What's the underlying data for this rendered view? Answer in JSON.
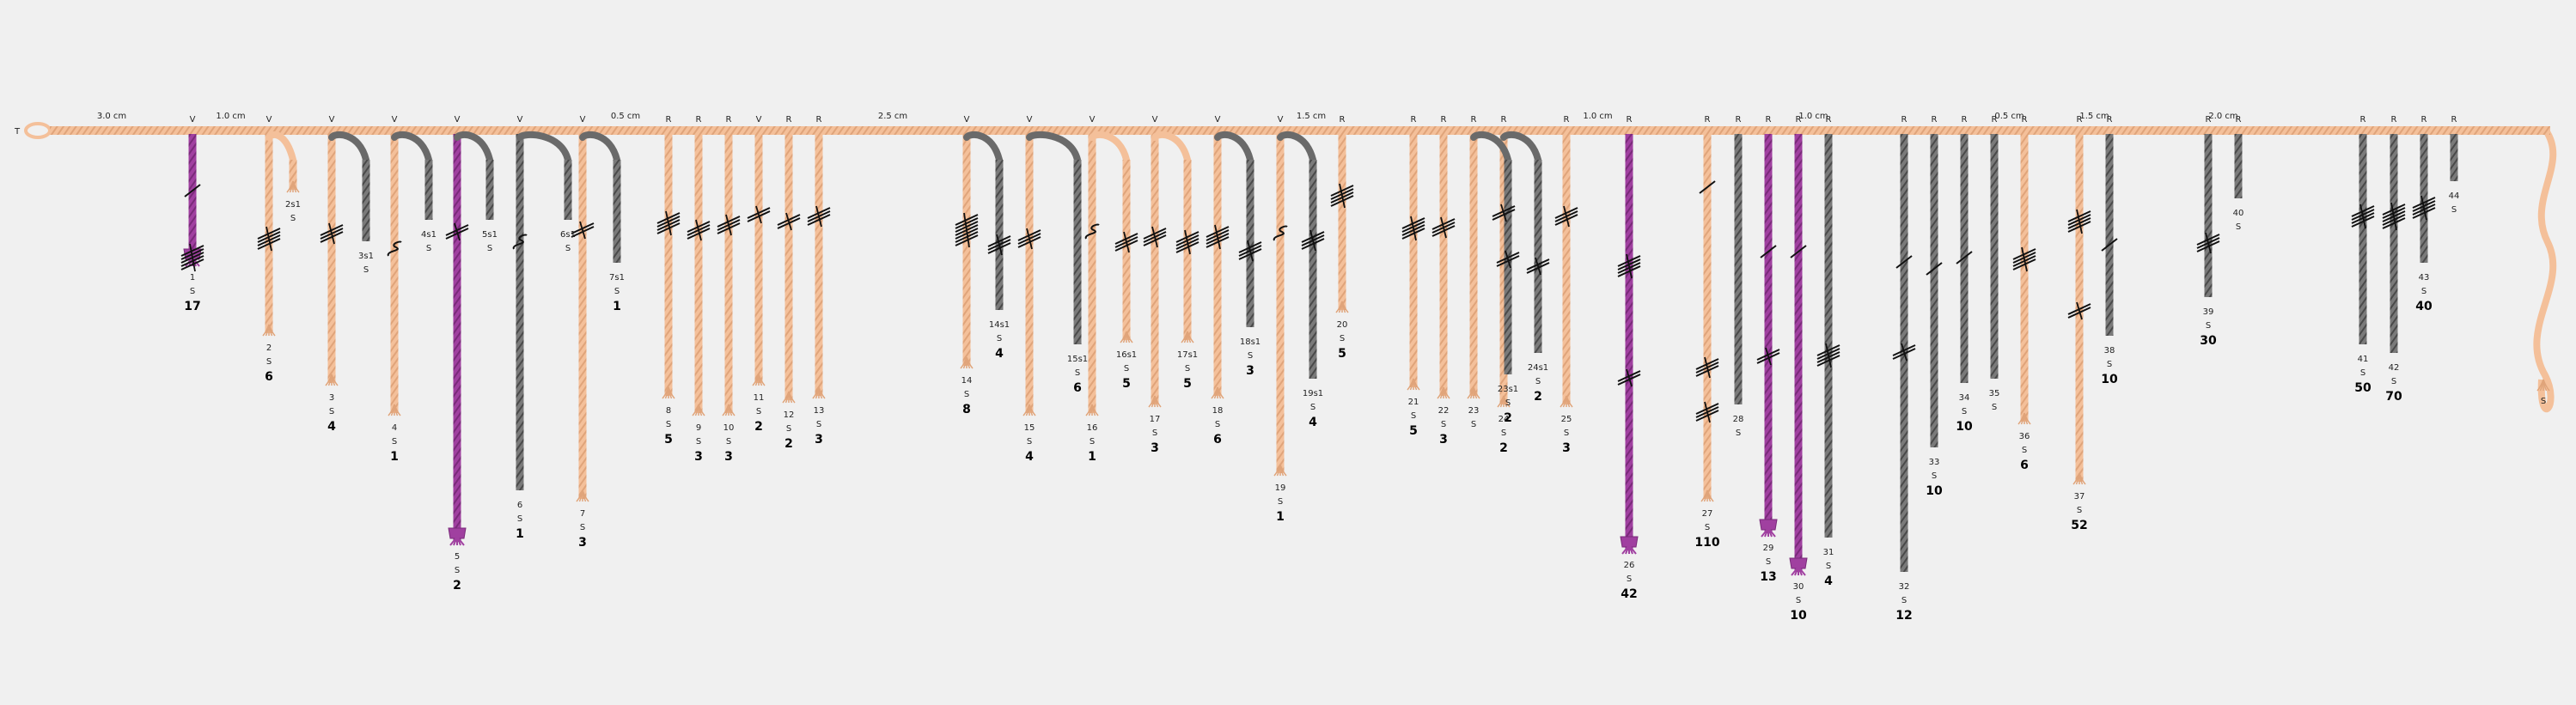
{
  "colors": {
    "background": "#f0f0f0",
    "tan": "#f4c09a",
    "tan_dark": "#e0a47a",
    "grey": "#777777",
    "grey_dark": "#555555",
    "purple": "#a040a0",
    "purple_dark": "#7a2a7a",
    "knot": "#111111"
  },
  "primary": {
    "start_label": "T",
    "spacing_labels": [
      {
        "after_cord": 0,
        "text": "3.0 cm"
      },
      {
        "after_cord": 1,
        "text": "1.0 cm"
      },
      {
        "after_cord": 7,
        "text": "0.5 cm"
      },
      {
        "after_cord": 13,
        "text": "2.5 cm"
      },
      {
        "after_cord": 19,
        "text": "1.5 cm"
      },
      {
        "after_cord": 25,
        "text": "1.0 cm"
      },
      {
        "after_cord": 30,
        "text": "1.0 cm"
      },
      {
        "after_cord": 35,
        "text": "0.5 cm"
      },
      {
        "after_cord": 37,
        "text": "1.5 cm"
      },
      {
        "after_cord": 39,
        "text": "2.0 cm"
      }
    ],
    "end_label": "S"
  },
  "pendants": [
    {
      "id": "1",
      "att": "V",
      "color": "purple",
      "len": 150,
      "s": "S",
      "val": "17"
    },
    {
      "id": "2",
      "att": "V",
      "color": "tan",
      "len": 232,
      "s": "S",
      "val": "6"
    },
    {
      "id": "3",
      "att": "V",
      "color": "tan",
      "len": 290,
      "s": "S",
      "val": "4"
    },
    {
      "id": "4",
      "att": "V",
      "color": "tan",
      "len": 325,
      "s": "S",
      "val": "1"
    },
    {
      "id": "5",
      "att": "V",
      "color": "purple",
      "len": 475,
      "s": "S",
      "val": "2"
    },
    {
      "id": "6",
      "att": "V",
      "color": "grey",
      "len": 415,
      "s": "S",
      "val": "1"
    },
    {
      "id": "7",
      "att": "V",
      "color": "tan",
      "len": 425,
      "s": "S",
      "val": "3"
    },
    {
      "id": "8",
      "att": "R",
      "color": "tan",
      "len": 305,
      "s": "S",
      "val": "5"
    },
    {
      "id": "9",
      "att": "R",
      "color": "tan",
      "len": 325,
      "s": "S",
      "val": "3"
    },
    {
      "id": "10",
      "att": "R",
      "color": "tan",
      "len": 325,
      "s": "S",
      "val": "3"
    },
    {
      "id": "11",
      "att": "V",
      "color": "tan",
      "len": 290,
      "s": "S",
      "val": "2"
    },
    {
      "id": "12",
      "att": "R",
      "color": "tan",
      "len": 310,
      "s": "S",
      "val": "2"
    },
    {
      "id": "13",
      "att": "R",
      "color": "tan",
      "len": 305,
      "s": "S",
      "val": "3"
    },
    {
      "id": "14",
      "att": "V",
      "color": "tan",
      "len": 270,
      "s": "S",
      "val": "8"
    },
    {
      "id": "15",
      "att": "V",
      "color": "tan",
      "len": 325,
      "s": "S",
      "val": "4"
    },
    {
      "id": "16",
      "att": "V",
      "color": "tan",
      "len": 325,
      "s": "S",
      "val": "1"
    },
    {
      "id": "17",
      "att": "V",
      "color": "tan",
      "len": 315,
      "s": "S",
      "val": "3"
    },
    {
      "id": "18",
      "att": "V",
      "color": "tan",
      "len": 305,
      "s": "S",
      "val": "6"
    },
    {
      "id": "19",
      "att": "V",
      "color": "tan",
      "len": 395,
      "s": "S",
      "val": "1"
    },
    {
      "id": "20",
      "att": "R",
      "color": "tan",
      "len": 205,
      "s": "S",
      "val": "5"
    },
    {
      "id": "21",
      "att": "R",
      "color": "tan",
      "len": 295,
      "s": "S",
      "val": "5"
    },
    {
      "id": "22",
      "att": "R",
      "color": "tan",
      "len": 305,
      "s": "S",
      "val": "3"
    },
    {
      "id": "23",
      "att": "R",
      "color": "tan",
      "len": 305,
      "s": "S",
      "val": ""
    },
    {
      "id": "24",
      "att": "R",
      "color": "tan",
      "len": 315,
      "s": "S",
      "val": "2"
    },
    {
      "id": "25",
      "att": "R",
      "color": "tan",
      "len": 315,
      "s": "S",
      "val": "3"
    },
    {
      "id": "26",
      "att": "R",
      "color": "purple",
      "len": 485,
      "s": "S",
      "val": "42"
    },
    {
      "id": "27",
      "att": "R",
      "color": "tan",
      "len": 425,
      "s": "S",
      "val": "110"
    },
    {
      "id": "28",
      "att": "R",
      "color": "grey",
      "len": 315,
      "s": "S",
      "val": ""
    },
    {
      "id": "29",
      "att": "R",
      "color": "purple",
      "len": 465,
      "s": "S",
      "val": "13"
    },
    {
      "id": "30",
      "att": "R",
      "color": "purple",
      "len": 510,
      "s": "S",
      "val": "10"
    },
    {
      "id": "31",
      "att": "R",
      "color": "grey",
      "len": 470,
      "s": "S",
      "val": "4"
    },
    {
      "id": "32",
      "att": "R",
      "color": "grey",
      "len": 510,
      "s": "S",
      "val": "12"
    },
    {
      "id": "33",
      "att": "R",
      "color": "grey",
      "len": 365,
      "s": "S",
      "val": "10"
    },
    {
      "id": "34",
      "att": "R",
      "color": "grey",
      "len": 290,
      "s": "S",
      "val": "10"
    },
    {
      "id": "35",
      "att": "R",
      "color": "grey",
      "len": 285,
      "s": "S",
      "val": ""
    },
    {
      "id": "36",
      "att": "R",
      "color": "tan",
      "len": 335,
      "s": "S",
      "val": "6"
    },
    {
      "id": "37",
      "att": "R",
      "color": "tan",
      "len": 405,
      "s": "S",
      "val": "52"
    },
    {
      "id": "38",
      "att": "R",
      "color": "grey",
      "len": 235,
      "s": "S",
      "val": "10"
    },
    {
      "id": "39",
      "att": "R",
      "color": "grey",
      "len": 190,
      "s": "S",
      "val": "30"
    },
    {
      "id": "40",
      "att": "R",
      "color": "grey",
      "len": 75,
      "s": "S",
      "val": ""
    },
    {
      "id": "41",
      "att": "R",
      "color": "grey",
      "len": 245,
      "s": "S",
      "val": "50"
    },
    {
      "id": "42",
      "att": "R",
      "color": "grey",
      "len": 255,
      "s": "S",
      "val": "70"
    },
    {
      "id": "43",
      "att": "R",
      "color": "grey",
      "len": 150,
      "s": "S",
      "val": "40"
    },
    {
      "id": "44",
      "att": "R",
      "color": "grey",
      "len": 55,
      "s": "S",
      "val": ""
    }
  ],
  "subsidiaries": [
    {
      "id": "2s1",
      "parent": "2",
      "color": "tan",
      "len": 35,
      "s": "S",
      "val": ""
    },
    {
      "id": "3s1",
      "parent": "3",
      "color": "grey",
      "len": 95,
      "s": "S",
      "val": ""
    },
    {
      "id": "4s1",
      "parent": "4",
      "color": "grey",
      "len": 70,
      "s": "S",
      "val": ""
    },
    {
      "id": "5s1",
      "parent": "5",
      "color": "grey",
      "len": 70,
      "s": "S",
      "val": ""
    },
    {
      "id": "6s1",
      "parent": "6",
      "color": "grey",
      "len": 70,
      "s": "S",
      "val": ""
    },
    {
      "id": "7s1",
      "parent": "7",
      "color": "grey",
      "len": 120,
      "s": "S",
      "val": "1"
    },
    {
      "id": "14s1",
      "parent": "14",
      "color": "grey",
      "len": 175,
      "s": "S",
      "val": "4"
    },
    {
      "id": "15s1",
      "parent": "15",
      "color": "grey",
      "len": 215,
      "s": "S",
      "val": "6"
    },
    {
      "id": "16s1",
      "parent": "16",
      "color": "tan",
      "len": 210,
      "s": "S",
      "val": "5"
    },
    {
      "id": "17s1",
      "parent": "17",
      "color": "tan",
      "len": 210,
      "s": "S",
      "val": "5"
    },
    {
      "id": "18s1",
      "parent": "18",
      "color": "grey",
      "len": 195,
      "s": "S",
      "val": "3"
    },
    {
      "id": "19s1",
      "parent": "19",
      "color": "grey",
      "len": 255,
      "s": "S",
      "val": "4"
    },
    {
      "id": "23s1",
      "parent": "23",
      "color": "grey",
      "len": 250,
      "s": "S",
      "val": "2"
    },
    {
      "id": "24s1",
      "parent": "24",
      "color": "grey",
      "len": 225,
      "s": "S",
      "val": "2"
    }
  ]
}
